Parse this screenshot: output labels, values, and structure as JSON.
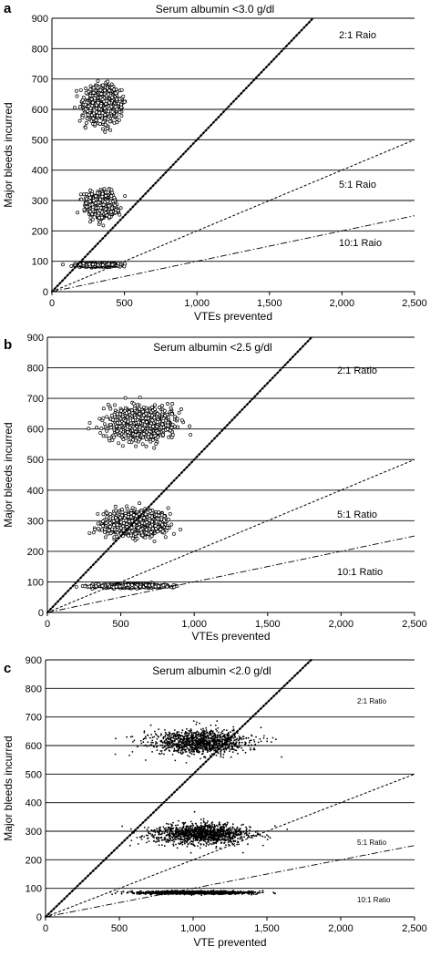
{
  "chart_data": [
    {
      "type": "scatter",
      "panel_label": "a",
      "title": "Serum albumin <3.0 g/dl",
      "xlabel": "VTEs prevented",
      "ylabel": "Major bleeds incurred",
      "xlim": [
        0,
        2500
      ],
      "ylim": [
        0,
        900
      ],
      "x_tick_labels": [
        "0",
        "500",
        "1,000",
        "1,500",
        "2,000",
        "2,500"
      ],
      "y_tick_labels": [
        "0",
        "100",
        "200",
        "300",
        "400",
        "500",
        "600",
        "700",
        "800",
        "900"
      ],
      "grid": "horizontal",
      "marker": "open circle",
      "clusters": [
        {
          "x_center": 350,
          "x_spread": 110,
          "y_center": 618,
          "y_spread": 50,
          "n": 900
        },
        {
          "x_center": 340,
          "x_spread": 95,
          "y_center": 285,
          "y_spread": 38,
          "n": 650
        },
        {
          "x_center": 310,
          "x_spread": 115,
          "y_center": 88,
          "y_spread": 5,
          "n": 700
        }
      ],
      "reference_lines": [
        {
          "label": "2:1 Raio",
          "slope": 0.5,
          "style": "dotted"
        },
        {
          "label": "5:1 Raio",
          "slope": 0.2,
          "style": "dashed"
        },
        {
          "label": "10:1 Raio",
          "slope": 0.1,
          "style": "dashdot"
        }
      ]
    },
    {
      "type": "scatter",
      "panel_label": "b",
      "title": "Serum albumin <2.5 g/dl",
      "xlabel": "VTEs prevented",
      "ylabel": "Major bleeds incurred",
      "xlim": [
        0,
        2500
      ],
      "ylim": [
        0,
        900
      ],
      "x_tick_labels": [
        "0",
        "500",
        "1,000",
        "1,500",
        "2,000",
        "2,500"
      ],
      "y_tick_labels": [
        "0",
        "100",
        "200",
        "300",
        "400",
        "500",
        "600",
        "700",
        "800",
        "900"
      ],
      "grid": "horizontal",
      "marker": "open circle",
      "clusters": [
        {
          "x_center": 640,
          "x_spread": 190,
          "y_center": 618,
          "y_spread": 48,
          "n": 900
        },
        {
          "x_center": 600,
          "x_spread": 190,
          "y_center": 290,
          "y_spread": 36,
          "n": 800
        },
        {
          "x_center": 560,
          "x_spread": 210,
          "y_center": 87,
          "y_spread": 5,
          "n": 900
        }
      ],
      "reference_lines": [
        {
          "label": "2:1 Ratio",
          "slope": 0.5,
          "style": "dotted"
        },
        {
          "label": "5:1 Ratio",
          "slope": 0.2,
          "style": "dashed"
        },
        {
          "label": "10:1 Ratio",
          "slope": 0.1,
          "style": "dashdot"
        }
      ]
    },
    {
      "type": "scatter",
      "panel_label": "c",
      "title": "Serum albumin <2.0 g/dl",
      "xlabel": "VTE prevented",
      "ylabel": "Major bleeds incurred",
      "xlim": [
        0,
        2500
      ],
      "ylim": [
        0,
        900
      ],
      "x_tick_labels": [
        "0",
        "500",
        "1,000",
        "1,500",
        "2,000",
        "2,500"
      ],
      "y_tick_labels": [
        "0",
        "100",
        "200",
        "300",
        "400",
        "500",
        "600",
        "700",
        "800",
        "900"
      ],
      "grid": "horizontal",
      "marker": "filled dot",
      "clusters": [
        {
          "x_center": 1050,
          "x_spread": 310,
          "y_center": 612,
          "y_spread": 40,
          "n": 1100
        },
        {
          "x_center": 1050,
          "x_spread": 300,
          "y_center": 290,
          "y_spread": 32,
          "n": 1200
        },
        {
          "x_center": 1000,
          "x_spread": 330,
          "y_center": 85,
          "y_spread": 5,
          "n": 1500
        }
      ],
      "reference_lines": [
        {
          "label": "2:1 Ratio",
          "slope": 0.5,
          "style": "dotted"
        },
        {
          "label": "5:1 Ratio",
          "slope": 0.2,
          "style": "dashed"
        },
        {
          "label": "10:1 Ratio",
          "slope": 0.1,
          "style": "dashdot"
        }
      ]
    }
  ]
}
